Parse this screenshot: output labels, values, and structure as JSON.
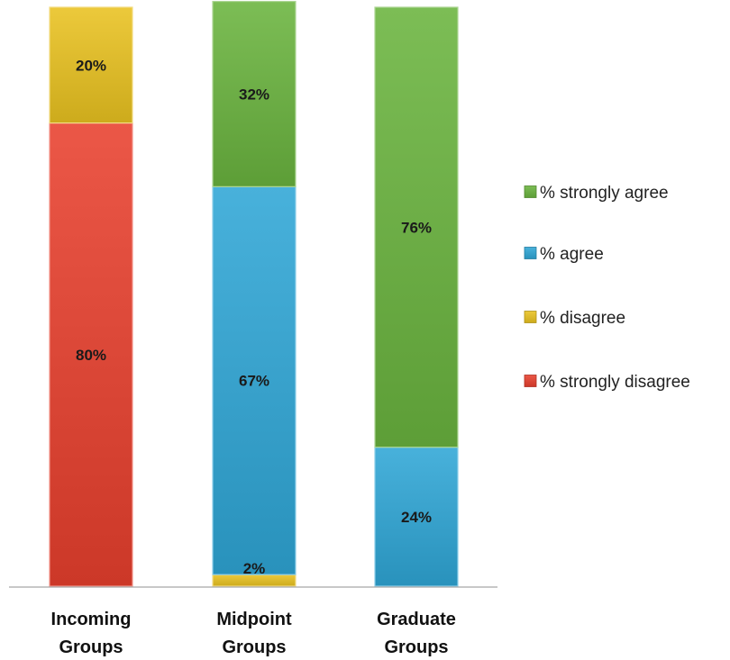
{
  "chart_data": {
    "type": "bar",
    "stacked": true,
    "normalized": true,
    "categories": [
      "Incoming Groups",
      "Midpoint Groups",
      "Graduate Groups"
    ],
    "category_lines": [
      [
        "Incoming",
        "Groups"
      ],
      [
        "Midpoint",
        "Groups"
      ],
      [
        "Graduate",
        "Groups"
      ]
    ],
    "series": [
      {
        "name": "% strongly disagree",
        "color": "#e8402e",
        "values": [
          80,
          0,
          0
        ],
        "labels": [
          "80%",
          "",
          ""
        ]
      },
      {
        "name": "% disagree",
        "color": "#e9c220",
        "values": [
          20,
          2,
          0
        ],
        "labels": [
          "20%",
          "2%",
          ""
        ]
      },
      {
        "name": "% agree",
        "color": "#2fa6d6",
        "values": [
          0,
          67,
          24
        ],
        "labels": [
          "",
          "67%",
          "24%"
        ]
      },
      {
        "name": "% strongly agree",
        "color": "#6ab43e",
        "values": [
          0,
          32,
          76
        ],
        "labels": [
          "",
          "32%",
          "76%"
        ]
      }
    ],
    "legend_order": [
      "% strongly agree",
      "% agree",
      "% disagree",
      "% strongly disagree"
    ],
    "legend_position": "right",
    "ylim": [
      0,
      100
    ],
    "grid": false,
    "title": "",
    "xlabel": "",
    "ylabel": ""
  }
}
